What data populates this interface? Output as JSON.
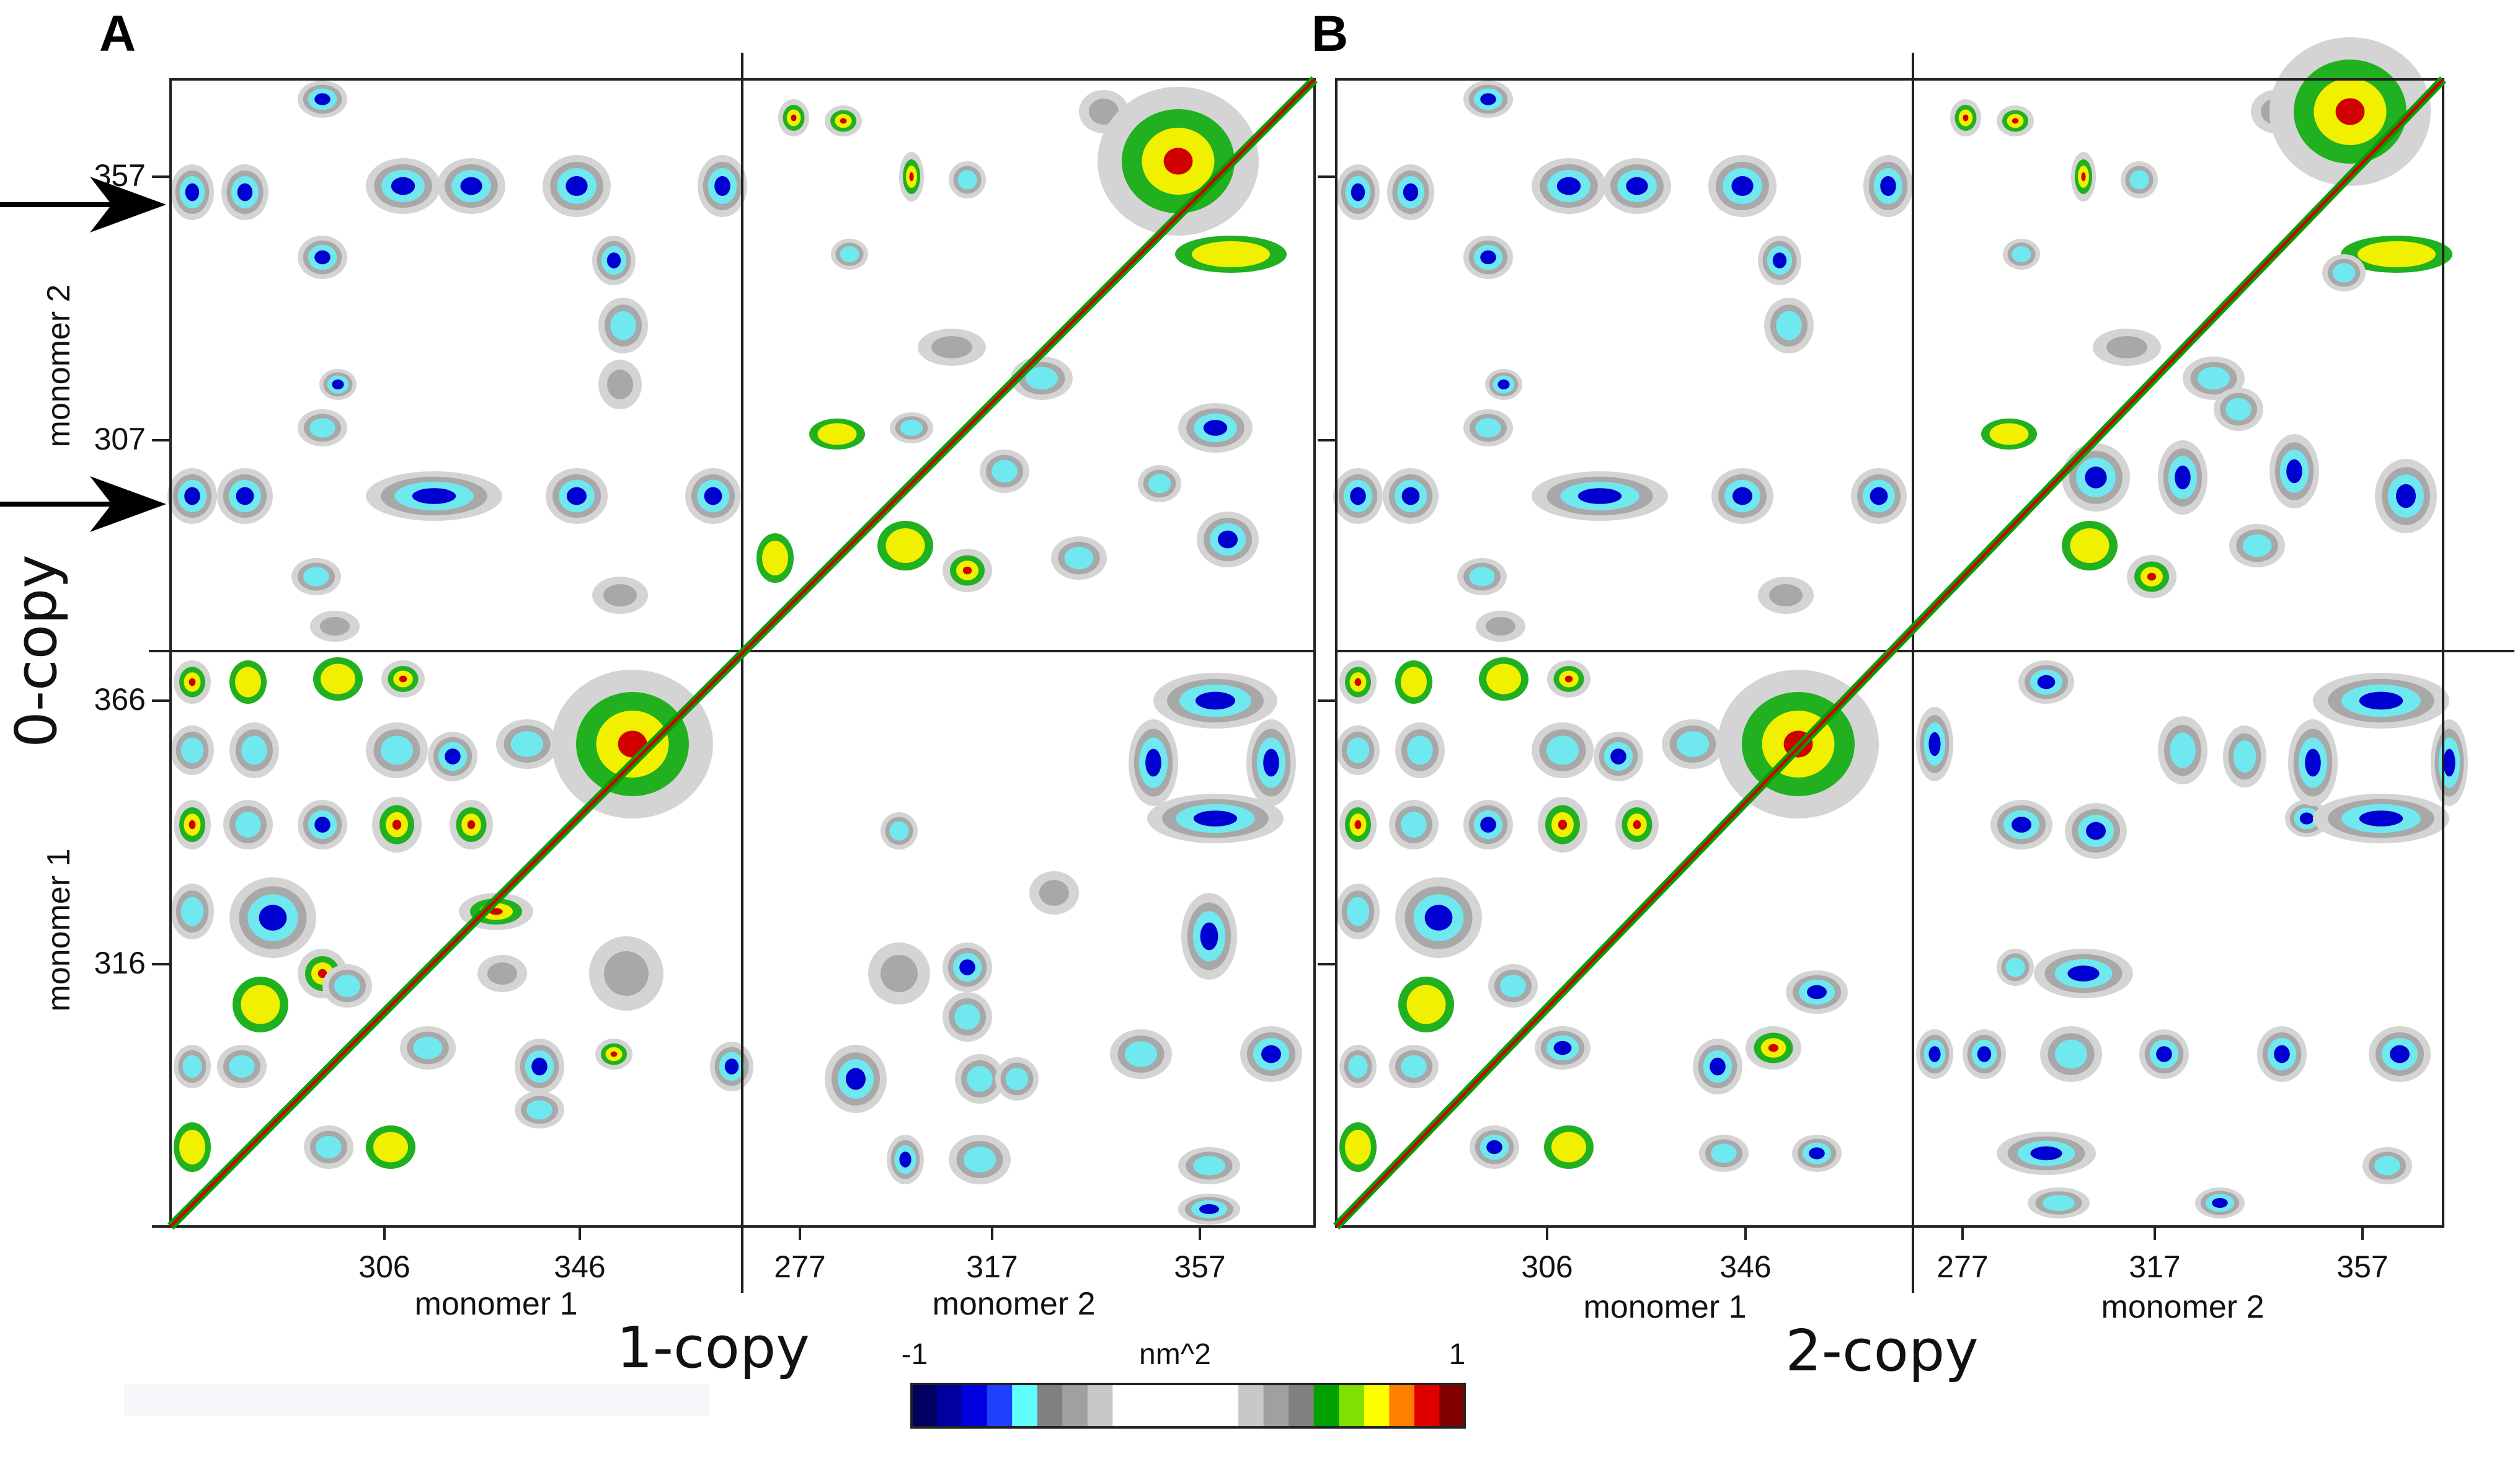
{
  "figure": {
    "panels": [
      {
        "letter": "A",
        "copy_label": "1-copy",
        "bottom_axis": {
          "left_name": "monomer 1",
          "right_name": "monomer 2",
          "left_ticks": [
            "306",
            "346"
          ],
          "right_ticks": [
            "277",
            "317",
            "357"
          ]
        },
        "left_axis": {
          "top_name": "monomer 2",
          "bottom_name": "monomer 1",
          "top_ticks": [
            "357",
            "307"
          ],
          "bottom_ticks": [
            "366",
            "316"
          ]
        }
      },
      {
        "letter": "B",
        "copy_label": "2-copy",
        "bottom_axis": {
          "left_name": "monomer 1",
          "right_name": "monomer 2",
          "left_ticks": [
            "306",
            "346"
          ],
          "right_ticks": [
            "277",
            "317",
            "357"
          ]
        }
      }
    ],
    "row_label": "0-copy",
    "arrows": 2,
    "colorbar": {
      "min_label": "-1",
      "max_label": "1",
      "unit_label": "nm^2",
      "colors": [
        "#000060",
        "#0000a0",
        "#0000e0",
        "#2040ff",
        "#60ffff",
        "#808080",
        "#a0a0a0",
        "#c8c8c8",
        "#ffffff",
        "#ffffff",
        "#ffffff",
        "#ffffff",
        "#ffffff",
        "#c8c8c8",
        "#a0a0a0",
        "#808080",
        "#00a000",
        "#80e000",
        "#ffff00",
        "#ff8000",
        "#e00000",
        "#800000"
      ]
    },
    "palette": {
      "dark_blue": "#0000d0",
      "cyan": "#70e8ef",
      "grey": "#a8a8a8",
      "light_grey": "#d4d4d4",
      "green": "#20b020",
      "yellow": "#f0f000",
      "red": "#d00000"
    }
  }
}
